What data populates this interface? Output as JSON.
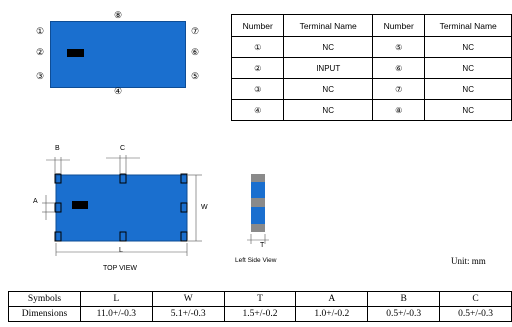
{
  "pin_diagram": {
    "pins": {
      "top": "⑧",
      "top_left": "①",
      "top_right": "⑦",
      "mid_left": "②",
      "mid_right": "⑥",
      "bot_left": "③",
      "bot_right": "⑤",
      "bottom": "④"
    },
    "body_color": "#1a6fcf"
  },
  "terminal_table": {
    "headers": [
      "Number",
      "Terminal Name",
      "Number",
      "Terminal Name"
    ],
    "rows": [
      [
        "①",
        "NC",
        "⑤",
        "NC"
      ],
      [
        "②",
        "INPUT",
        "⑥",
        "NC"
      ],
      [
        "③",
        "NC",
        "⑦",
        "NC"
      ],
      [
        "④",
        "NC",
        "⑧",
        "NC"
      ]
    ]
  },
  "top_view": {
    "dim_b": "B",
    "dim_c": "C",
    "dim_a": "A",
    "dim_w": "W",
    "dim_l": "L",
    "caption": "TOP VIEW"
  },
  "side_view": {
    "dim_t": "T",
    "caption": "Left Side View"
  },
  "unit": "Unit: mm",
  "dimension_table": {
    "symbols_label": "Symbols",
    "dimensions_label": "Dimensions",
    "symbols": [
      "L",
      "W",
      "T",
      "A",
      "B",
      "C"
    ],
    "values": [
      "11.0+/-0.3",
      "5.1+/-0.3",
      "1.5+/-0.2",
      "1.0+/-0.2",
      "0.5+/-0.3",
      "0.5+/-0.3"
    ]
  }
}
